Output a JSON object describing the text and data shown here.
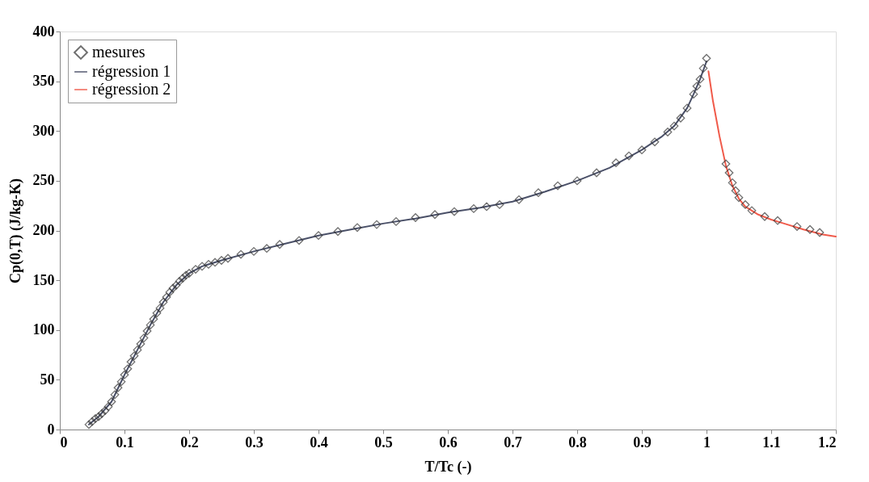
{
  "chart_data": {
    "type": "line",
    "xlabel": "T/Tc (-)",
    "ylabel": "Cp(0,T) (J/kg-K)",
    "xlim": [
      0,
      1.2
    ],
    "xticks": [
      0,
      0.1,
      0.2,
      0.3,
      0.4,
      0.5,
      0.6,
      0.7,
      0.8,
      0.9,
      1,
      1.1,
      1.2
    ],
    "ylim": [
      0,
      400
    ],
    "yticks": [
      0,
      50,
      100,
      150,
      200,
      250,
      300,
      350,
      400
    ],
    "grid": false,
    "legend": "top left",
    "series": [
      {
        "name": "mesures",
        "type": "scatter",
        "marker": "diamond",
        "color": "#333333",
        "x": [
          0.045,
          0.05,
          0.055,
          0.06,
          0.065,
          0.07,
          0.075,
          0.08,
          0.085,
          0.09,
          0.095,
          0.1,
          0.105,
          0.11,
          0.115,
          0.12,
          0.125,
          0.13,
          0.135,
          0.14,
          0.145,
          0.15,
          0.155,
          0.16,
          0.165,
          0.17,
          0.175,
          0.18,
          0.185,
          0.19,
          0.195,
          0.2,
          0.21,
          0.22,
          0.23,
          0.24,
          0.25,
          0.26,
          0.28,
          0.3,
          0.32,
          0.34,
          0.37,
          0.4,
          0.43,
          0.46,
          0.49,
          0.52,
          0.55,
          0.58,
          0.61,
          0.64,
          0.66,
          0.68,
          0.71,
          0.74,
          0.77,
          0.8,
          0.83,
          0.86,
          0.88,
          0.9,
          0.92,
          0.94,
          0.95,
          0.96,
          0.97,
          0.98,
          0.985,
          0.99,
          0.995,
          1.0,
          1.03,
          1.035,
          1.04,
          1.045,
          1.05,
          1.06,
          1.07,
          1.09,
          1.11,
          1.14,
          1.16,
          1.175
        ],
        "values": [
          5,
          8,
          11,
          13,
          16,
          19,
          23,
          28,
          35,
          42,
          48,
          55,
          61,
          68,
          74,
          80,
          86,
          92,
          99,
          105,
          111,
          117,
          122,
          128,
          133,
          138,
          142,
          145,
          149,
          152,
          155,
          157,
          161,
          164,
          166,
          168,
          170,
          172,
          176,
          179,
          182,
          186,
          190,
          195,
          199,
          203,
          206,
          209,
          213,
          216,
          219,
          222,
          224,
          226,
          231,
          238,
          245,
          250,
          258,
          268,
          275,
          281,
          289,
          299,
          305,
          313,
          323,
          337,
          345,
          352,
          363,
          373,
          267,
          258,
          248,
          240,
          233,
          226,
          220,
          214,
          210,
          204,
          201,
          198
        ]
      },
      {
        "name": "régression 1",
        "color": "#4a5068",
        "x": [
          0.045,
          0.06,
          0.08,
          0.1,
          0.12,
          0.14,
          0.16,
          0.18,
          0.2,
          0.22,
          0.25,
          0.3,
          0.35,
          0.4,
          0.45,
          0.5,
          0.55,
          0.6,
          0.65,
          0.7,
          0.75,
          0.8,
          0.85,
          0.9,
          0.93,
          0.95,
          0.97,
          0.98,
          0.99,
          1.0
        ],
        "values": [
          5,
          13,
          28,
          55,
          80,
          105,
          128,
          145,
          157,
          164,
          170,
          179,
          187,
          195,
          201,
          207,
          212,
          218,
          223,
          229,
          239,
          250,
          263,
          281,
          294,
          305,
          323,
          337,
          352,
          370
        ]
      },
      {
        "name": "régression 2",
        "color": "#f05a4a",
        "x": [
          1.003,
          1.01,
          1.02,
          1.03,
          1.04,
          1.05,
          1.06,
          1.08,
          1.1,
          1.12,
          1.15,
          1.18,
          1.2
        ],
        "values": [
          360,
          330,
          295,
          265,
          245,
          232,
          224,
          216,
          211,
          207,
          201,
          196,
          194
        ]
      }
    ]
  }
}
